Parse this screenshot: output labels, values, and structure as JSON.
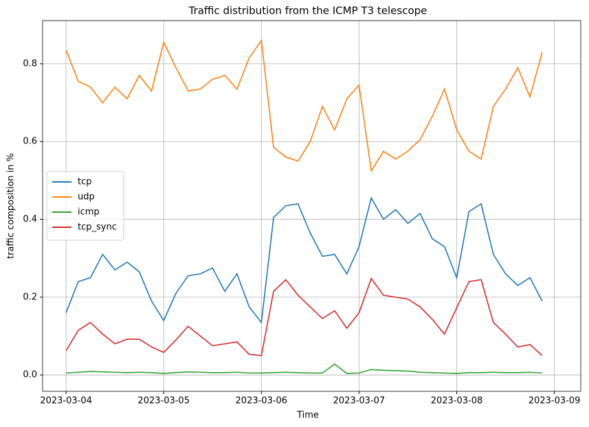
{
  "chart_data": {
    "type": "line",
    "title": "Traffic distribution from the ICMP T3 telescope",
    "x_label": "Time",
    "y_label": "traffic composition in %",
    "x": [
      0,
      0.125,
      0.25,
      0.375,
      0.5,
      0.625,
      0.75,
      0.875,
      1,
      1.125,
      1.25,
      1.375,
      1.5,
      1.625,
      1.75,
      1.875,
      2,
      2.125,
      2.25,
      2.375,
      2.5,
      2.625,
      2.75,
      2.875,
      3,
      3.125,
      3.25,
      3.375,
      3.5,
      3.625,
      3.75,
      3.875,
      4,
      4.125,
      4.25,
      4.375,
      4.5,
      4.625,
      4.75,
      4.875
    ],
    "series": [
      {
        "name": "tcp",
        "color": "#1f77b4",
        "values": [
          0.16,
          0.24,
          0.25,
          0.31,
          0.27,
          0.29,
          0.265,
          0.19,
          0.14,
          0.21,
          0.255,
          0.26,
          0.275,
          0.215,
          0.26,
          0.175,
          0.135,
          0.405,
          0.435,
          0.44,
          0.365,
          0.305,
          0.31,
          0.26,
          0.33,
          0.455,
          0.4,
          0.425,
          0.39,
          0.415,
          0.35,
          0.33,
          0.25,
          0.42,
          0.44,
          0.31,
          0.26,
          0.23,
          0.25,
          0.19
        ]
      },
      {
        "name": "udp",
        "color": "#ff7f0e",
        "values": [
          0.835,
          0.755,
          0.74,
          0.7,
          0.74,
          0.71,
          0.77,
          0.73,
          0.855,
          0.79,
          0.73,
          0.735,
          0.76,
          0.77,
          0.735,
          0.815,
          0.86,
          0.585,
          0.56,
          0.55,
          0.6,
          0.69,
          0.63,
          0.71,
          0.745,
          0.525,
          0.575,
          0.555,
          0.575,
          0.605,
          0.665,
          0.735,
          0.63,
          0.575,
          0.555,
          0.69,
          0.735,
          0.79,
          0.715,
          0.83
        ]
      },
      {
        "name": "icmp",
        "color": "#2ca02c",
        "values": [
          0.005,
          0.007,
          0.009,
          0.008,
          0.007,
          0.006,
          0.007,
          0.006,
          0.004,
          0.006,
          0.008,
          0.007,
          0.006,
          0.006,
          0.007,
          0.005,
          0.005,
          0.006,
          0.007,
          0.006,
          0.005,
          0.005,
          0.028,
          0.004,
          0.005,
          0.014,
          0.012,
          0.011,
          0.01,
          0.007,
          0.006,
          0.005,
          0.004,
          0.006,
          0.006,
          0.007,
          0.006,
          0.006,
          0.007,
          0.005
        ]
      },
      {
        "name": "tcp_sync",
        "color": "#d62728",
        "values": [
          0.062,
          0.115,
          0.135,
          0.105,
          0.08,
          0.092,
          0.092,
          0.072,
          0.058,
          0.09,
          0.125,
          0.1,
          0.075,
          0.08,
          0.085,
          0.053,
          0.05,
          0.215,
          0.245,
          0.205,
          0.175,
          0.145,
          0.165,
          0.12,
          0.16,
          0.248,
          0.205,
          0.2,
          0.195,
          0.175,
          0.143,
          0.105,
          0.173,
          0.24,
          0.245,
          0.135,
          0.105,
          0.072,
          0.078,
          0.05
        ]
      }
    ],
    "xlim": [
      -0.24,
      5.27
    ],
    "xticks": [
      {
        "value": 0,
        "label": "2023-03-04"
      },
      {
        "value": 1,
        "label": "2023-03-05"
      },
      {
        "value": 2,
        "label": "2023-03-06"
      },
      {
        "value": 3,
        "label": "2023-03-07"
      },
      {
        "value": 4,
        "label": "2023-03-08"
      },
      {
        "value": 5,
        "label": "2023-03-09"
      }
    ],
    "ylim": [
      -0.042,
      0.911
    ],
    "yticks": [
      {
        "value": 0,
        "label": "0.0"
      },
      0.2,
      0.4,
      0.6,
      0.8
    ],
    "grid": true,
    "legend": "center left"
  }
}
